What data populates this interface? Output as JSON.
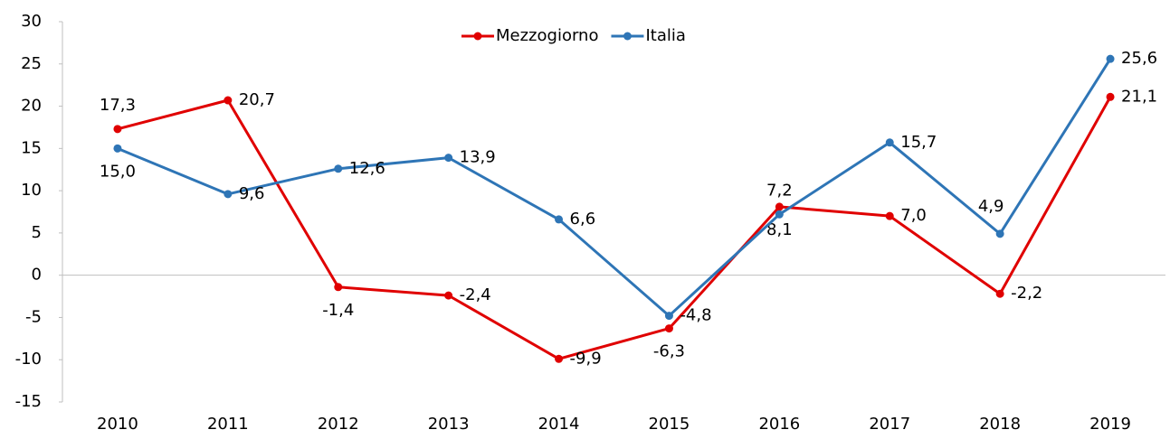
{
  "chart_data": {
    "type": "line",
    "categories": [
      "2010",
      "2011",
      "2012",
      "2013",
      "2014",
      "2015",
      "2016",
      "2017",
      "2018",
      "2019"
    ],
    "series": [
      {
        "name": "Mezzogiorno",
        "color": "#e00000",
        "values": [
          17.3,
          20.7,
          -1.4,
          -2.4,
          -9.9,
          -6.3,
          8.1,
          7.0,
          -2.2,
          21.1
        ],
        "value_labels": [
          "17,3",
          "20,7",
          "-1,4",
          "-2,4",
          "-9,9",
          "-6,3",
          "8,1",
          "7,0",
          "-2,2",
          "21,1"
        ]
      },
      {
        "name": "Italia",
        "color": "#2e75b6",
        "values": [
          15.0,
          9.6,
          12.6,
          13.9,
          6.6,
          -4.8,
          7.2,
          15.7,
          4.9,
          25.6
        ],
        "value_labels": [
          "15,0",
          "9,6",
          "12,6",
          "13,9",
          "6,6",
          "-4,8",
          "7,2",
          "15,7",
          "4,9",
          "25,6"
        ]
      }
    ],
    "ylim": [
      -15,
      30
    ],
    "yticks": [
      -15,
      -10,
      -5,
      0,
      5,
      10,
      15,
      20,
      25,
      30
    ],
    "legend": "top",
    "grid": false
  }
}
